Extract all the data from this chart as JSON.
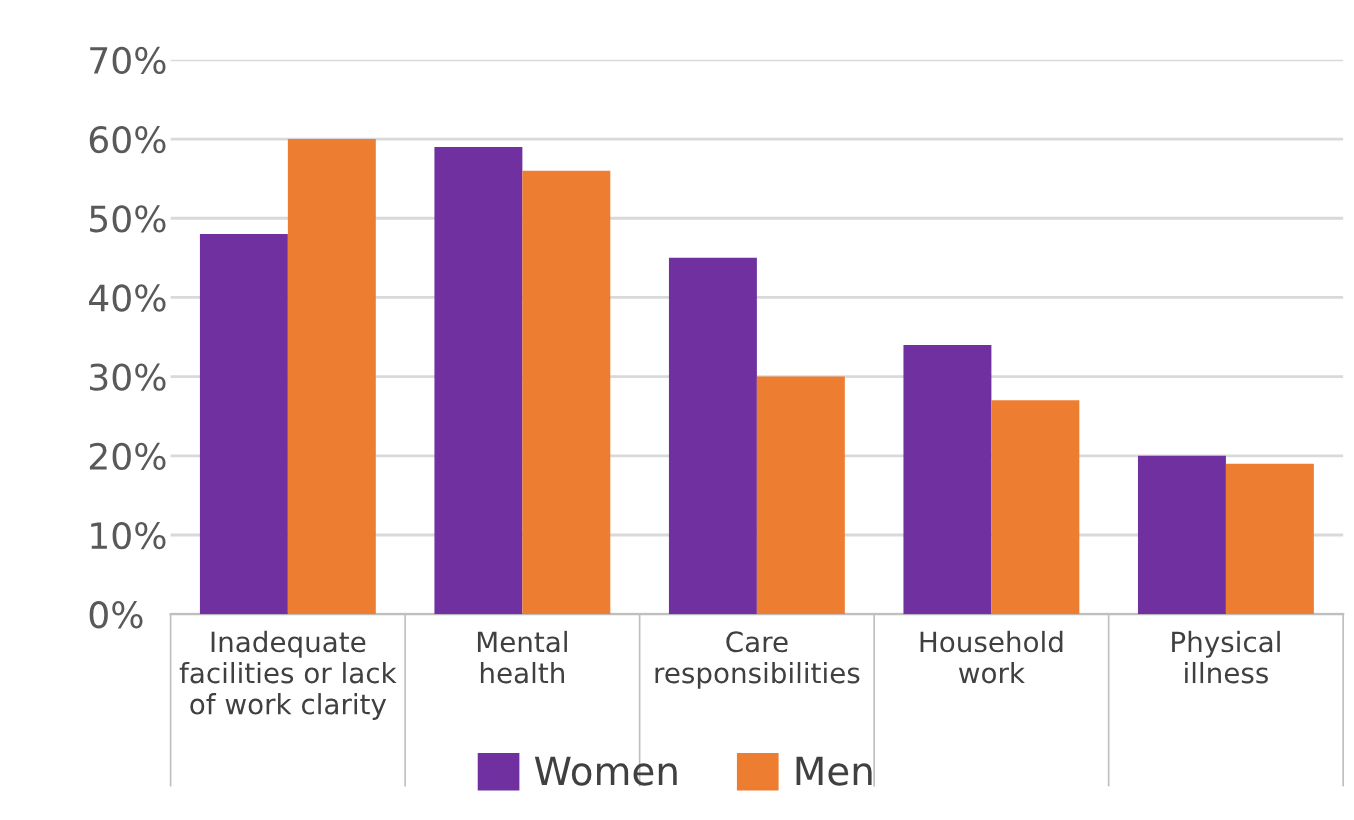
{
  "chart_data": {
    "type": "bar",
    "categories": [
      "Inadequate\nfacilities or lack\nof work clarity",
      "Mental\nhealth",
      "Care\nresponsibilities",
      "Household\nwork",
      "Physical\nillness"
    ],
    "series": [
      {
        "name": "Women",
        "color": "#7030a0",
        "values": [
          48,
          59,
          45,
          34,
          20
        ]
      },
      {
        "name": "Men",
        "color": "#ed7d31",
        "values": [
          60,
          56,
          30,
          27,
          19
        ]
      }
    ],
    "ylim": [
      0,
      70
    ],
    "yticks": [
      {
        "value": 0,
        "label": "0%"
      },
      {
        "value": 10,
        "label": "10%"
      },
      {
        "value": 20,
        "label": "20%"
      },
      {
        "value": 30,
        "label": "30%"
      },
      {
        "value": 40,
        "label": "40%"
      },
      {
        "value": 50,
        "label": "50%"
      },
      {
        "value": 60,
        "label": "60%"
      },
      {
        "value": 70,
        "label": "70%"
      }
    ],
    "grid": "y",
    "legend": "bottom"
  }
}
